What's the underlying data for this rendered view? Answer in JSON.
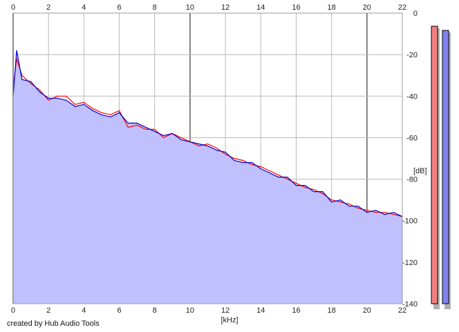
{
  "chart_data": {
    "type": "area",
    "xlabel": "[kHz]",
    "ylabel": "[dB]",
    "xlim": [
      0,
      22
    ],
    "ylim": [
      -140,
      0
    ],
    "x_ticks": [
      "0",
      "2",
      "4",
      "6",
      "8",
      "10",
      "12",
      "14",
      "16",
      "18",
      "20",
      "22"
    ],
    "y_ticks": [
      "0",
      "-20",
      "-40",
      "-60",
      "-80",
      "-100",
      "-120",
      "-140"
    ],
    "grid": true,
    "series": [
      {
        "color": "#ff0000",
        "x": [
          0,
          0.2,
          0.5,
          1,
          1.5,
          2,
          2.5,
          3,
          3.5,
          4,
          4.5,
          5,
          5.5,
          6,
          6.5,
          7,
          7.5,
          8,
          8.5,
          9,
          9.5,
          10,
          10.5,
          11,
          11.5,
          12,
          12.5,
          13,
          13.5,
          14,
          14.5,
          15,
          15.5,
          16,
          16.5,
          17,
          17.5,
          18,
          18.5,
          19,
          19.5,
          20,
          20.5,
          21,
          21.5,
          22
        ],
        "values": [
          -36,
          -22,
          -30,
          -34,
          -37,
          -42,
          -40,
          -40,
          -44,
          -43,
          -46,
          -48,
          -49,
          -47,
          -55,
          -54,
          -56,
          -56,
          -60,
          -58,
          -60,
          -62,
          -64,
          -63,
          -65,
          -68,
          -70,
          -71,
          -73,
          -74,
          -76,
          -78,
          -80,
          -82,
          -84,
          -85,
          -87,
          -90,
          -91,
          -92,
          -94,
          -95,
          -96,
          -96,
          -97,
          -98
        ]
      },
      {
        "color": "#0000cc",
        "x": [
          0,
          0.2,
          0.5,
          1,
          1.5,
          2,
          2.5,
          3,
          3.5,
          4,
          4.5,
          5,
          5.5,
          6,
          6.5,
          7,
          7.5,
          8,
          8.5,
          9,
          9.5,
          10,
          10.5,
          11,
          11.5,
          12,
          12.5,
          13,
          13.5,
          14,
          14.5,
          15,
          15.5,
          16,
          16.5,
          17,
          17.5,
          18,
          18.5,
          19,
          19.5,
          20,
          20.5,
          21,
          21.5,
          22
        ],
        "values": [
          -40,
          -18,
          -32,
          -33,
          -38,
          -41,
          -41,
          -42,
          -45,
          -44,
          -47,
          -49,
          -50,
          -48,
          -53,
          -53,
          -55,
          -57,
          -59,
          -58,
          -61,
          -62,
          -63,
          -64,
          -66,
          -67,
          -71,
          -72,
          -72,
          -75,
          -77,
          -79,
          -79,
          -83,
          -83,
          -86,
          -86,
          -91,
          -90,
          -93,
          -93,
          -96,
          -95,
          -97,
          -96,
          -98
        ]
      }
    ],
    "level_meters": [
      {
        "color": "#f08080",
        "value_db": -3
      },
      {
        "color": "#8080f0",
        "value_db": -5
      }
    ]
  },
  "credit": "created by Hub Audio Tools",
  "colors": {
    "fill": "#c0c0ff",
    "grid": "#b8b8b8",
    "major_grid": "#808080"
  }
}
